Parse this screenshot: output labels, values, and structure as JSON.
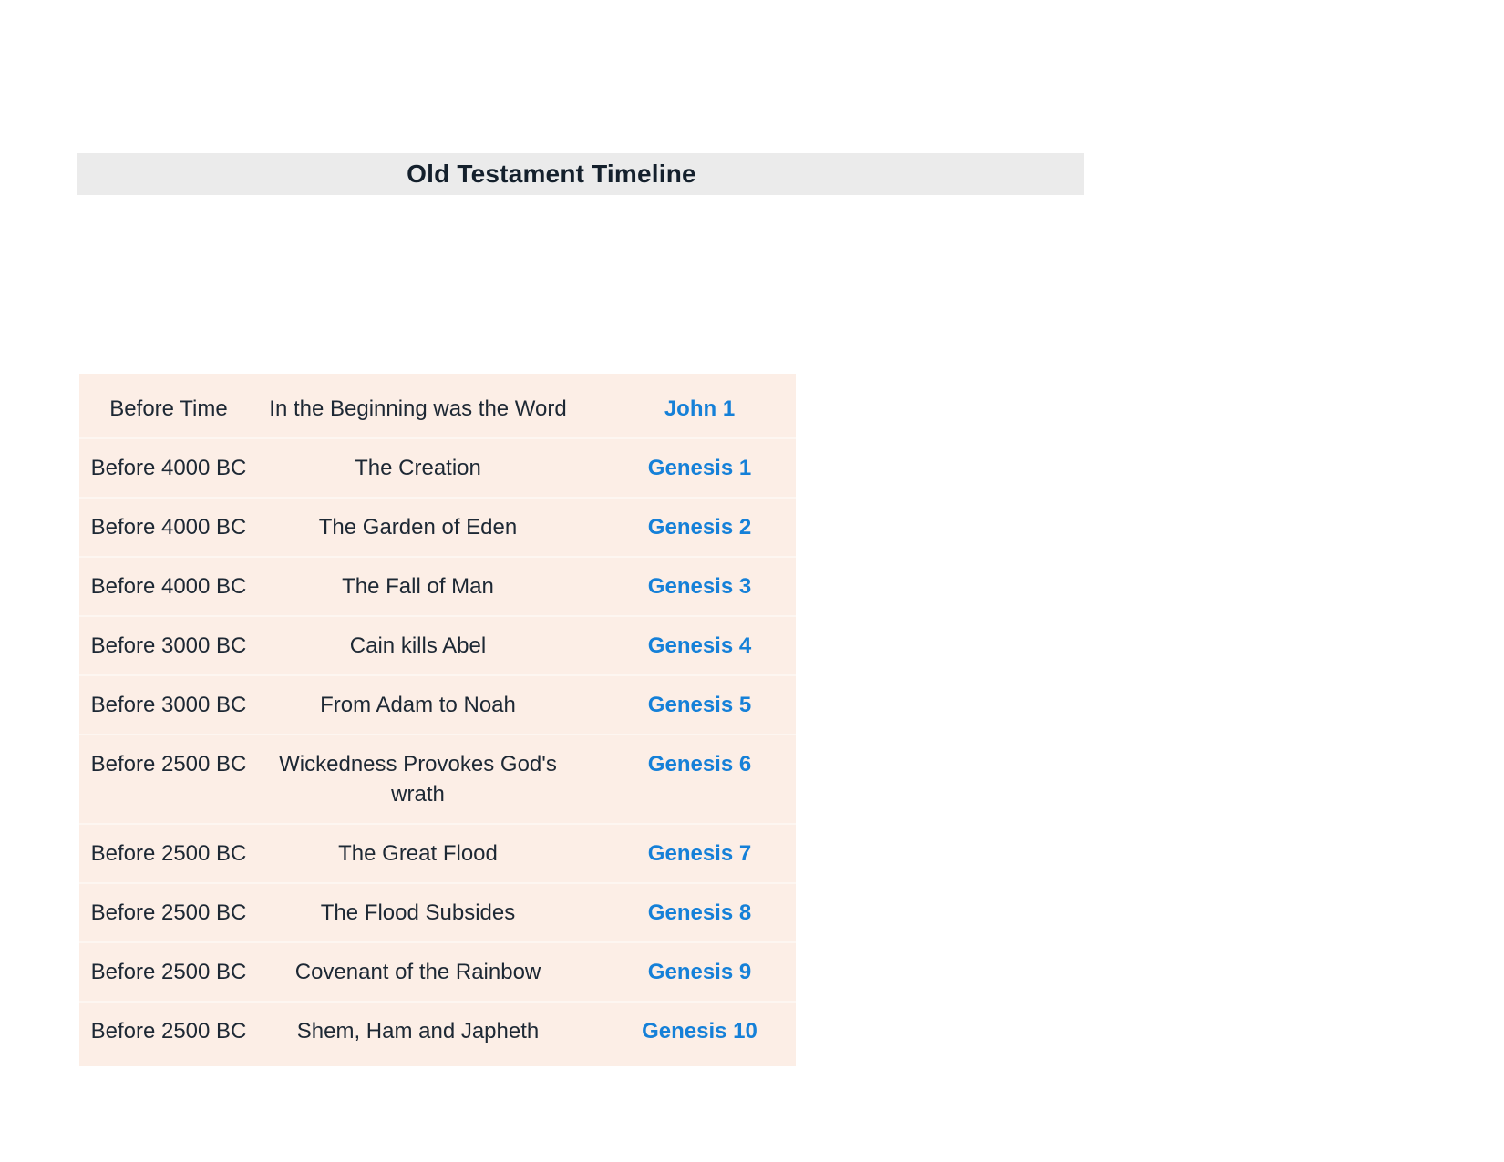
{
  "header": {
    "title": "Old Testament Timeline",
    "background_color": "#ebebeb",
    "text_color": "#14202c"
  },
  "table": {
    "background_color": "#fceee6",
    "text_color": "#1d2834",
    "link_color": "#1580d8",
    "columns": [
      "date",
      "event",
      "reference"
    ],
    "rows": [
      {
        "date": "Before Time",
        "event": "In the Beginning was the Word",
        "reference": "John 1"
      },
      {
        "date": "Before 4000 BC",
        "event": "The Creation",
        "reference": "Genesis 1"
      },
      {
        "date": "Before 4000 BC",
        "event": "The Garden of Eden",
        "reference": "Genesis 2"
      },
      {
        "date": "Before 4000 BC",
        "event": "The Fall of Man",
        "reference": "Genesis 3"
      },
      {
        "date": "Before 3000 BC",
        "event": "Cain kills Abel",
        "reference": "Genesis 4"
      },
      {
        "date": "Before 3000 BC",
        "event": "From Adam to Noah",
        "reference": "Genesis 5"
      },
      {
        "date": "Before 2500 BC",
        "event": "Wickedness Provokes God's wrath",
        "reference": "Genesis 6"
      },
      {
        "date": "Before 2500 BC",
        "event": "The Great Flood",
        "reference": "Genesis 7"
      },
      {
        "date": "Before 2500 BC",
        "event": "The Flood Subsides",
        "reference": "Genesis 8"
      },
      {
        "date": "Before 2500 BC",
        "event": "Covenant of the Rainbow",
        "reference": "Genesis 9"
      },
      {
        "date": "Before 2500 BC",
        "event": "Shem, Ham and Japheth",
        "reference": "Genesis 10"
      }
    ]
  }
}
